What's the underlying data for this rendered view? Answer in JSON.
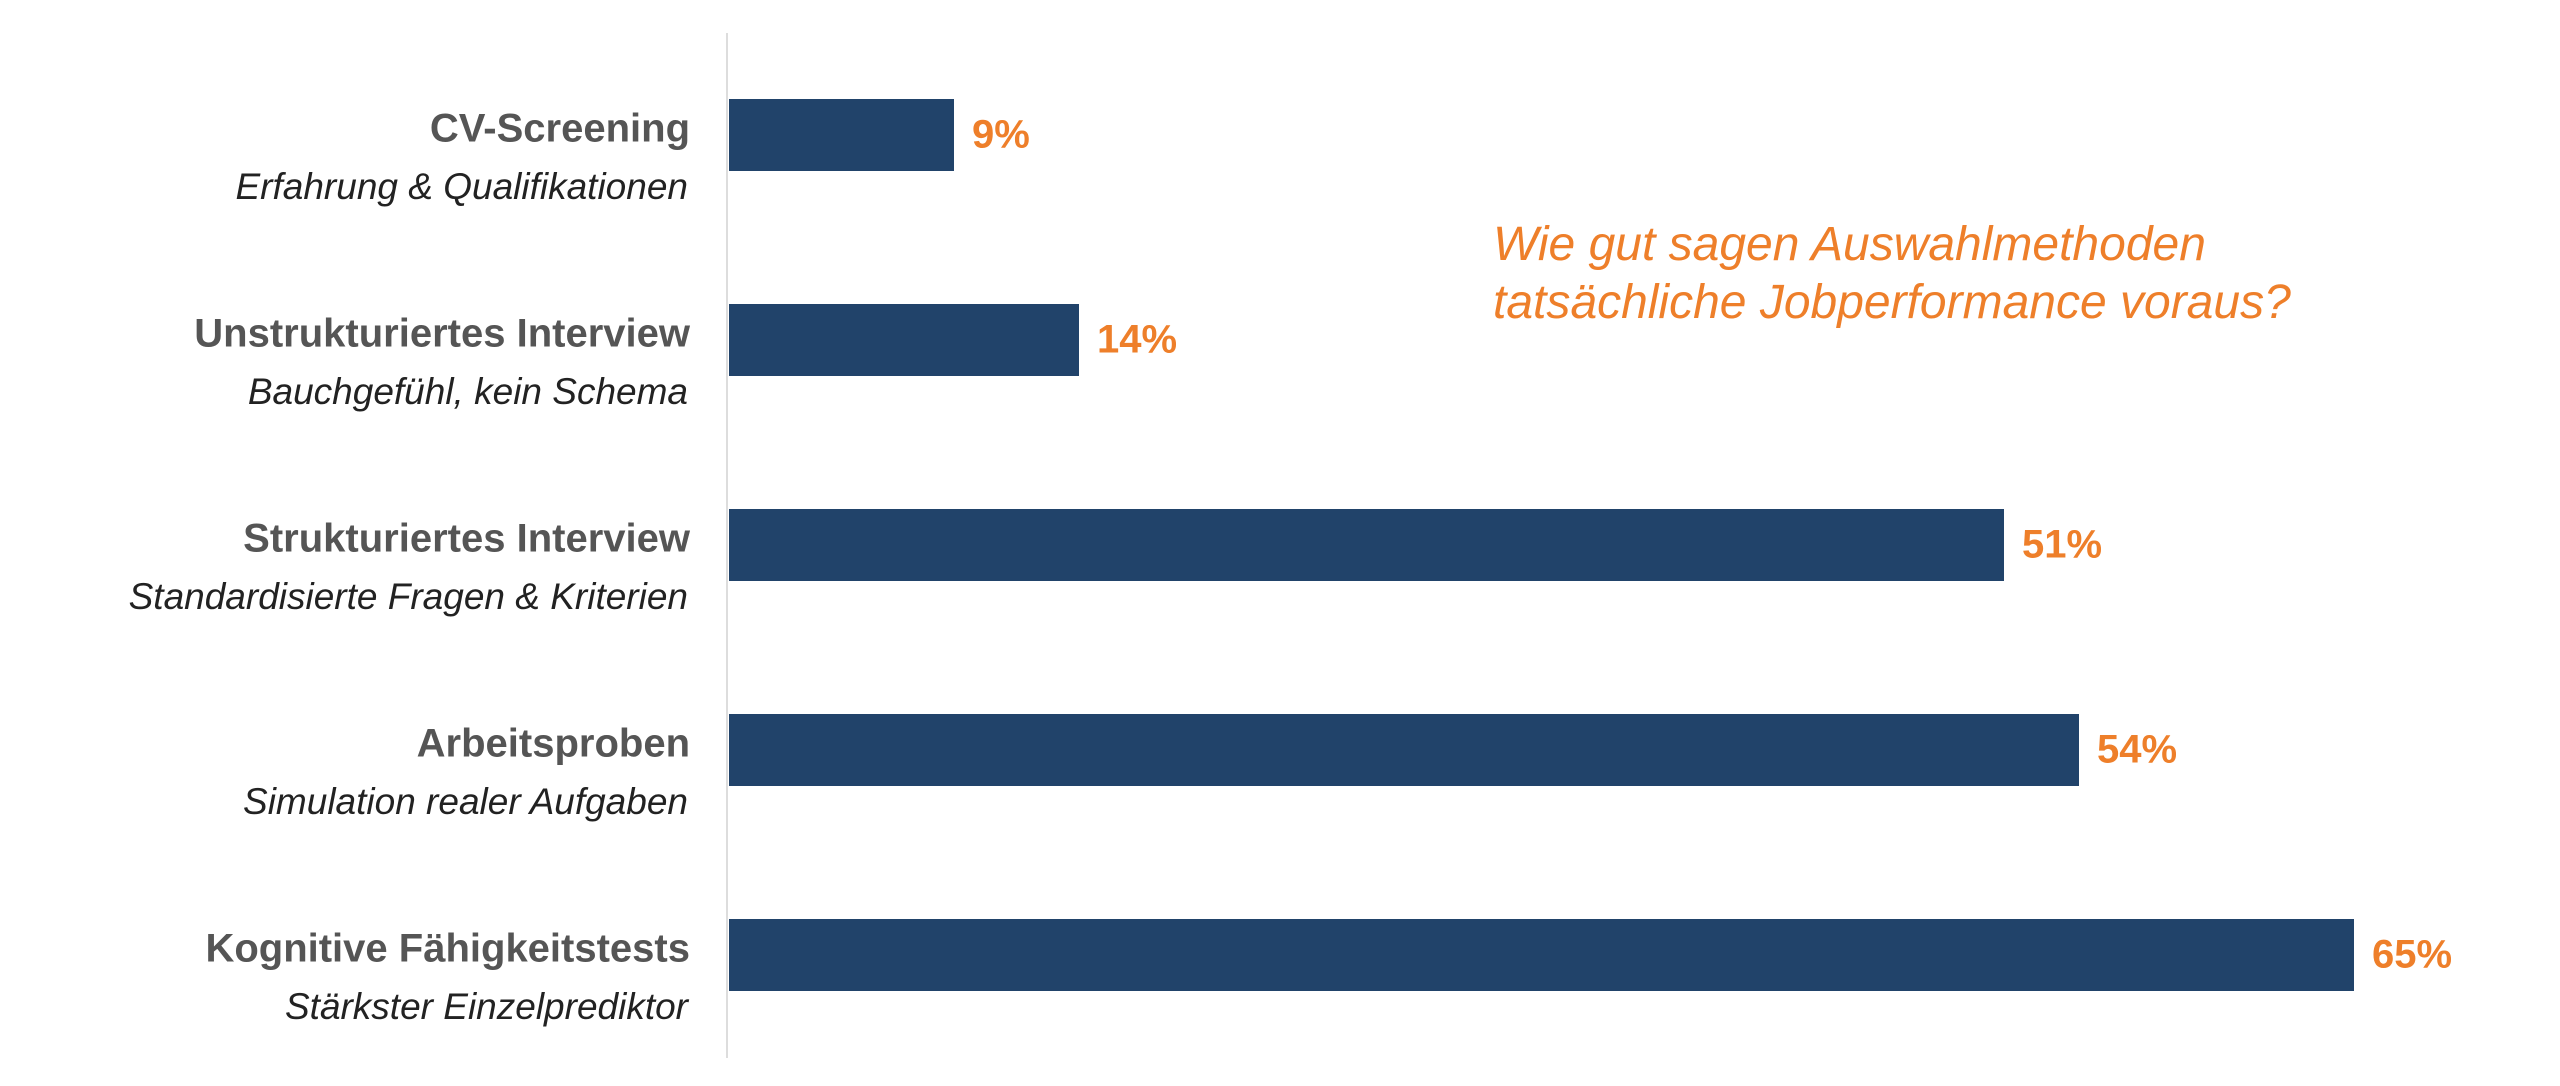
{
  "chart_data": {
    "type": "bar",
    "orientation": "horizontal",
    "title": "Wie gut sagen Auswahlmethoden tatsächliche Jobperformance voraus?",
    "categories": [
      "CV-Screening",
      "Unstrukturiertes Interview",
      "Strukturiertes Interview",
      "Arbeitsproben",
      "Kognitive Fähigkeitstests"
    ],
    "descriptions": [
      "Erfahrung & Qualifikationen",
      "Bauchgefühl, kein Schema",
      "Standardisierte Fragen & Kriterien",
      "Simulation realer Aufgaben",
      "Stärkster Einzelprediktor"
    ],
    "values": [
      9,
      14,
      51,
      54,
      65
    ],
    "value_labels": [
      "9%",
      "14%",
      "51%",
      "54%",
      "65%"
    ],
    "color": "#21436a"
  }
}
